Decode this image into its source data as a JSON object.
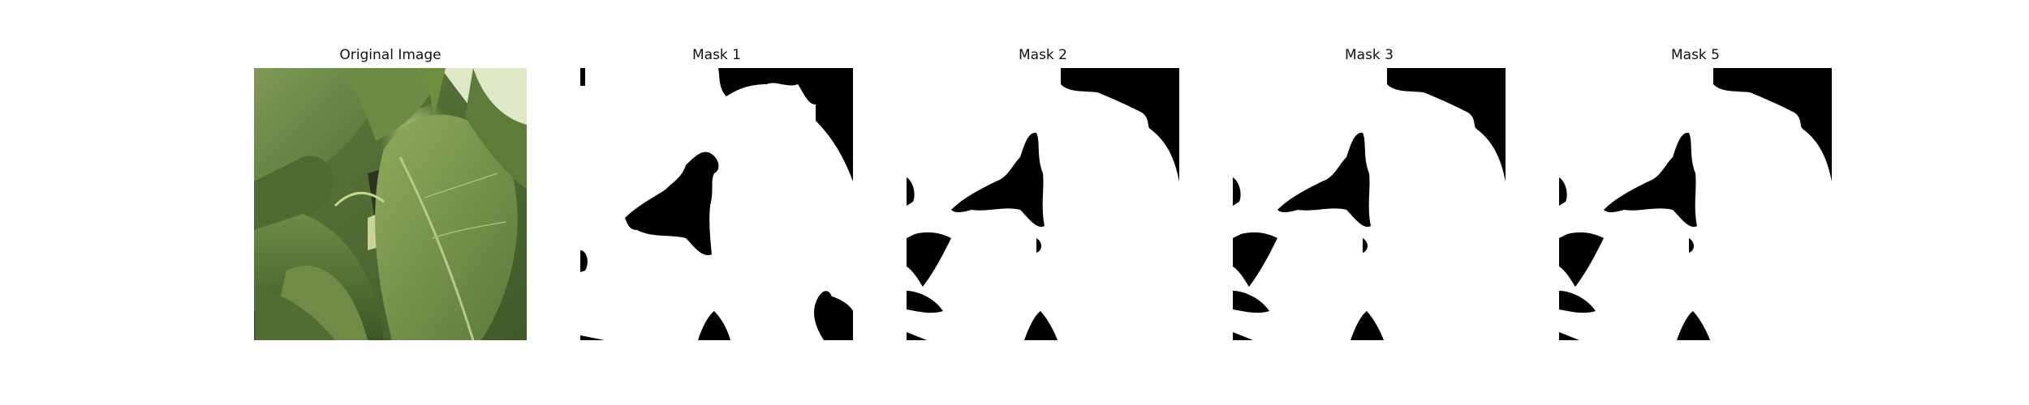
{
  "figure": {
    "background": "#ffffff",
    "panels": [
      {
        "id": "original",
        "title": "Original Image",
        "kind": "photo",
        "subject": "leaves-photo"
      },
      {
        "id": "mask1",
        "title": "Mask 1",
        "kind": "binary-mask",
        "fg": "#ffffff",
        "bg": "#000000"
      },
      {
        "id": "mask2",
        "title": "Mask 2",
        "kind": "binary-mask",
        "fg": "#ffffff",
        "bg": "#000000"
      },
      {
        "id": "mask3",
        "title": "Mask 3",
        "kind": "binary-mask",
        "fg": "#ffffff",
        "bg": "#000000"
      },
      {
        "id": "mask5",
        "title": "Mask 5",
        "kind": "binary-mask",
        "fg": "#ffffff",
        "bg": "#000000"
      }
    ]
  }
}
